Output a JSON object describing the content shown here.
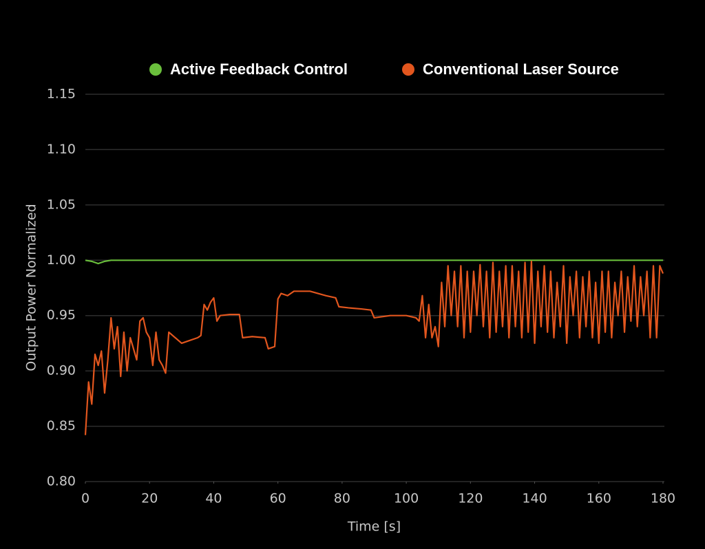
{
  "chart_data": {
    "type": "line",
    "xlabel": "Time [s]",
    "ylabel": "Output Power Normalized",
    "xlim": [
      0,
      180
    ],
    "xticks": [
      0,
      20,
      40,
      60,
      80,
      100,
      120,
      140,
      160,
      180
    ],
    "ylim": [
      0.8,
      1.15
    ],
    "yticks": [
      {
        "value": 0.8,
        "label": "0.80"
      },
      0.85,
      {
        "value": 0.9,
        "label": "0.90"
      },
      0.95,
      {
        "value": 1.0,
        "label": "1.00"
      },
      1.05,
      {
        "value": 1.1,
        "label": "1.10"
      },
      1.15
    ],
    "grid": true,
    "legend": "top",
    "series": [
      {
        "name": "Active Feedback Control",
        "color": "#6abf3c",
        "x": [
          0,
          2,
          3,
          4,
          5,
          6,
          8,
          10,
          20,
          30,
          40,
          50,
          60,
          70,
          80,
          90,
          100,
          110,
          120,
          130,
          140,
          150,
          160,
          170,
          180
        ],
        "values": [
          1.0,
          0.999,
          0.998,
          0.997,
          0.998,
          0.999,
          1.0,
          1.0,
          1.0,
          1.0,
          1.0,
          1.0,
          1.0,
          1.0,
          1.0,
          1.0,
          1.0,
          1.0,
          1.0,
          1.0,
          1.0,
          1.0,
          1.0,
          1.0,
          1.0
        ]
      },
      {
        "name": "Conventional Laser Source",
        "color": "#e2561e",
        "x": [
          0,
          1,
          2,
          3,
          4,
          5,
          6,
          7,
          8,
          9,
          10,
          11,
          12,
          13,
          14,
          16,
          17,
          18,
          19,
          20,
          21,
          22,
          23,
          24,
          25,
          26,
          28,
          30,
          32,
          35,
          36,
          37,
          38,
          39,
          40,
          41,
          42,
          45,
          48,
          49,
          52,
          56,
          57,
          59,
          60,
          61,
          63,
          65,
          70,
          75,
          78,
          79,
          82,
          86,
          89,
          90,
          95,
          100,
          103,
          104,
          105,
          106,
          107,
          108,
          109,
          110,
          111,
          112,
          113,
          114,
          115,
          116,
          117,
          118,
          119,
          120,
          121,
          122,
          123,
          124,
          125,
          126,
          127,
          128,
          129,
          130,
          131,
          132,
          133,
          134,
          135,
          136,
          137,
          138,
          139,
          140,
          141,
          142,
          143,
          144,
          145,
          146,
          147,
          148,
          149,
          150,
          151,
          152,
          153,
          154,
          155,
          156,
          157,
          158,
          159,
          160,
          161,
          162,
          163,
          164,
          165,
          166,
          167,
          168,
          169,
          170,
          171,
          172,
          173,
          174,
          175,
          176,
          177,
          178,
          179,
          180
        ],
        "values": [
          0.842,
          0.89,
          0.87,
          0.915,
          0.905,
          0.918,
          0.88,
          0.91,
          0.948,
          0.92,
          0.94,
          0.895,
          0.935,
          0.9,
          0.93,
          0.91,
          0.945,
          0.948,
          0.935,
          0.93,
          0.905,
          0.935,
          0.91,
          0.905,
          0.898,
          0.935,
          0.93,
          0.925,
          0.927,
          0.93,
          0.932,
          0.96,
          0.955,
          0.962,
          0.966,
          0.945,
          0.95,
          0.951,
          0.951,
          0.93,
          0.931,
          0.93,
          0.92,
          0.922,
          0.965,
          0.97,
          0.968,
          0.972,
          0.972,
          0.968,
          0.966,
          0.958,
          0.957,
          0.956,
          0.955,
          0.948,
          0.95,
          0.95,
          0.948,
          0.945,
          0.968,
          0.93,
          0.96,
          0.93,
          0.94,
          0.922,
          0.98,
          0.94,
          0.995,
          0.95,
          0.99,
          0.94,
          0.995,
          0.93,
          0.99,
          0.935,
          0.99,
          0.95,
          0.996,
          0.94,
          0.99,
          0.93,
          0.998,
          0.935,
          0.99,
          0.94,
          0.995,
          0.93,
          0.995,
          0.94,
          0.99,
          0.93,
          0.998,
          0.935,
          0.999,
          0.925,
          0.99,
          0.94,
          0.995,
          0.935,
          0.99,
          0.93,
          0.98,
          0.94,
          0.995,
          0.925,
          0.985,
          0.95,
          0.99,
          0.93,
          0.985,
          0.94,
          0.99,
          0.93,
          0.98,
          0.925,
          0.99,
          0.935,
          0.99,
          0.93,
          0.98,
          0.95,
          0.99,
          0.935,
          0.985,
          0.945,
          0.995,
          0.94,
          0.985,
          0.95,
          0.99,
          0.93,
          0.995,
          0.93,
          0.995,
          0.988
        ]
      }
    ]
  }
}
